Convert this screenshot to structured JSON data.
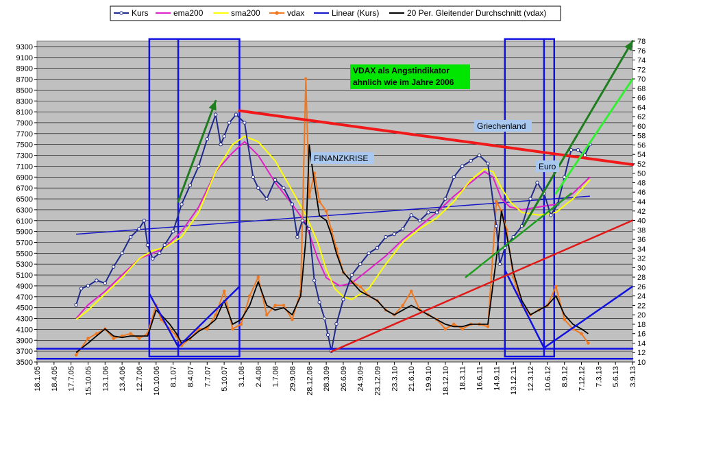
{
  "chart_data": {
    "type": "line",
    "title": "",
    "xlabel": "",
    "ylabel": "",
    "y_left_range": [
      3500,
      9400
    ],
    "y_right_range": [
      10,
      78
    ],
    "y_left_ticks": [
      3500,
      3700,
      3900,
      4100,
      4300,
      4500,
      4700,
      4900,
      5100,
      5300,
      5500,
      5700,
      5900,
      6100,
      6300,
      6500,
      6700,
      6900,
      7100,
      7300,
      7500,
      7700,
      7900,
      8100,
      8300,
      8500,
      8700,
      8900,
      9100,
      9300
    ],
    "y_right_ticks": [
      10,
      12,
      14,
      16,
      18,
      20,
      22,
      24,
      26,
      28,
      30,
      32,
      34,
      36,
      38,
      40,
      42,
      44,
      46,
      48,
      50,
      52,
      54,
      56,
      58,
      60,
      62,
      64,
      66,
      68,
      70,
      72,
      74,
      76,
      78
    ],
    "x_tick_labels": [
      "18.1.05",
      "18.4.05",
      "17.7.05",
      "15.10.05",
      "13.1.06",
      "13.4.06",
      "12.7.06",
      "10.10.06",
      "8.1.07",
      "8.4.07",
      "7.7.07",
      "5.10.07",
      "3.1.08",
      "2.4.08",
      "1.7.08",
      "29.9.08",
      "28.12.08",
      "28.3.09",
      "26.6.09",
      "24.9.09",
      "23.12.09",
      "23.3.10",
      "21.6.10",
      "19.9.10",
      "18.12.10",
      "18.3.11",
      "16.6.11",
      "14.9.11",
      "13.12.11",
      "12.3.12",
      "10.6.12",
      "8.9.12",
      "7.12.12",
      "7.3.13",
      "5.6.13",
      "3.9.13"
    ],
    "grid": true,
    "legend_position": "top",
    "series": [
      {
        "name": "Kurs",
        "color": "#1f2a8c",
        "axis": "left",
        "points": [
          [
            2.3,
            4550
          ],
          [
            2.6,
            4850
          ],
          [
            3.0,
            4900
          ],
          [
            3.5,
            5000
          ],
          [
            4.0,
            4950
          ],
          [
            4.5,
            5250
          ],
          [
            5.0,
            5500
          ],
          [
            5.5,
            5800
          ],
          [
            6.0,
            5950
          ],
          [
            6.3,
            6100
          ],
          [
            6.5,
            5650
          ],
          [
            6.8,
            5400
          ],
          [
            7.2,
            5500
          ],
          [
            7.5,
            5650
          ],
          [
            8.0,
            5900
          ],
          [
            8.5,
            6400
          ],
          [
            9.0,
            6750
          ],
          [
            9.5,
            7100
          ],
          [
            10.0,
            7600
          ],
          [
            10.5,
            8050
          ],
          [
            10.8,
            7500
          ],
          [
            11.0,
            7650
          ],
          [
            11.3,
            7900
          ],
          [
            11.7,
            8050
          ],
          [
            12.2,
            7900
          ],
          [
            12.7,
            6900
          ],
          [
            13.0,
            6700
          ],
          [
            13.5,
            6500
          ],
          [
            14.0,
            6850
          ],
          [
            14.5,
            6700
          ],
          [
            15.0,
            6400
          ],
          [
            15.3,
            5800
          ],
          [
            15.6,
            6100
          ],
          [
            16.0,
            5950
          ],
          [
            16.3,
            5000
          ],
          [
            16.6,
            4600
          ],
          [
            16.9,
            4300
          ],
          [
            17.1,
            4000
          ],
          [
            17.3,
            3700
          ],
          [
            17.6,
            4200
          ],
          [
            18.0,
            4650
          ],
          [
            18.5,
            5100
          ],
          [
            19.0,
            5300
          ],
          [
            19.5,
            5500
          ],
          [
            20.0,
            5600
          ],
          [
            20.5,
            5800
          ],
          [
            21.0,
            5850
          ],
          [
            21.5,
            5950
          ],
          [
            22.0,
            6200
          ],
          [
            22.5,
            6100
          ],
          [
            23.0,
            6250
          ],
          [
            23.5,
            6250
          ],
          [
            24.0,
            6500
          ],
          [
            24.5,
            6900
          ],
          [
            25.0,
            7100
          ],
          [
            25.5,
            7200
          ],
          [
            26.0,
            7300
          ],
          [
            26.5,
            7150
          ],
          [
            27.0,
            6000
          ],
          [
            27.2,
            5300
          ],
          [
            27.5,
            5600
          ],
          [
            28.0,
            5800
          ],
          [
            28.5,
            6000
          ],
          [
            29.0,
            6500
          ],
          [
            29.4,
            6800
          ],
          [
            29.8,
            6600
          ],
          [
            30.2,
            6200
          ],
          [
            30.6,
            6400
          ],
          [
            31.0,
            6900
          ],
          [
            31.4,
            7400
          ],
          [
            31.8,
            7400
          ],
          [
            32.2,
            7300
          ],
          [
            32.5,
            7500
          ]
        ]
      },
      {
        "name": "ema200",
        "color": "#e020c8",
        "axis": "left",
        "points": [
          [
            2.3,
            4300
          ],
          [
            3.0,
            4550
          ],
          [
            4.0,
            4800
          ],
          [
            5.0,
            5100
          ],
          [
            6.0,
            5400
          ],
          [
            6.8,
            5500
          ],
          [
            7.5,
            5600
          ],
          [
            8.5,
            5900
          ],
          [
            9.5,
            6350
          ],
          [
            10.5,
            7000
          ],
          [
            11.5,
            7350
          ],
          [
            12.2,
            7550
          ],
          [
            13.0,
            7300
          ],
          [
            14.0,
            6800
          ],
          [
            15.0,
            6400
          ],
          [
            15.8,
            6050
          ],
          [
            16.5,
            5400
          ],
          [
            17.0,
            5050
          ],
          [
            17.8,
            4900
          ],
          [
            18.5,
            4950
          ],
          [
            19.5,
            5200
          ],
          [
            20.5,
            5450
          ],
          [
            21.5,
            5750
          ],
          [
            22.5,
            6000
          ],
          [
            23.5,
            6250
          ],
          [
            24.5,
            6550
          ],
          [
            25.5,
            6800
          ],
          [
            26.3,
            7000
          ],
          [
            26.8,
            6900
          ],
          [
            27.3,
            6500
          ],
          [
            27.8,
            6350
          ],
          [
            28.5,
            6300
          ],
          [
            29.5,
            6350
          ],
          [
            30.5,
            6400
          ],
          [
            31.5,
            6600
          ],
          [
            32.5,
            6900
          ]
        ]
      },
      {
        "name": "sma200",
        "color": "#ffff00",
        "axis": "left",
        "points": [
          [
            2.3,
            4280
          ],
          [
            3.0,
            4450
          ],
          [
            4.0,
            4750
          ],
          [
            5.0,
            5050
          ],
          [
            6.0,
            5400
          ],
          [
            6.8,
            5550
          ],
          [
            7.5,
            5600
          ],
          [
            8.5,
            5800
          ],
          [
            9.5,
            6250
          ],
          [
            10.5,
            7000
          ],
          [
            11.5,
            7500
          ],
          [
            12.2,
            7650
          ],
          [
            13.0,
            7550
          ],
          [
            14.0,
            7200
          ],
          [
            15.0,
            6650
          ],
          [
            15.8,
            6200
          ],
          [
            16.5,
            5700
          ],
          [
            17.0,
            5200
          ],
          [
            17.5,
            4850
          ],
          [
            18.0,
            4700
          ],
          [
            18.5,
            4650
          ],
          [
            19.5,
            4850
          ],
          [
            20.5,
            5300
          ],
          [
            21.5,
            5700
          ],
          [
            22.5,
            5950
          ],
          [
            23.5,
            6150
          ],
          [
            24.5,
            6450
          ],
          [
            25.5,
            6850
          ],
          [
            26.3,
            7050
          ],
          [
            26.8,
            7000
          ],
          [
            27.3,
            6700
          ],
          [
            27.8,
            6450
          ],
          [
            28.5,
            6250
          ],
          [
            29.5,
            6200
          ],
          [
            30.5,
            6250
          ],
          [
            31.5,
            6500
          ],
          [
            32.5,
            6850
          ]
        ]
      },
      {
        "name": "vdax",
        "color": "#f07820",
        "axis": "right",
        "points": [
          [
            2.3,
            11.5
          ],
          [
            3.0,
            15
          ],
          [
            3.5,
            16
          ],
          [
            4.0,
            17
          ],
          [
            4.5,
            15
          ],
          [
            5.0,
            15.5
          ],
          [
            5.5,
            16
          ],
          [
            6.0,
            15
          ],
          [
            6.5,
            16
          ],
          [
            7.0,
            22
          ],
          [
            7.3,
            19
          ],
          [
            7.8,
            17
          ],
          [
            8.2,
            15.5
          ],
          [
            8.5,
            13.5
          ],
          [
            9.0,
            15
          ],
          [
            9.5,
            17
          ],
          [
            10.0,
            17
          ],
          [
            10.5,
            20
          ],
          [
            11.0,
            25
          ],
          [
            11.5,
            17
          ],
          [
            12.0,
            18
          ],
          [
            12.5,
            24
          ],
          [
            13.0,
            28
          ],
          [
            13.5,
            20
          ],
          [
            14.0,
            22
          ],
          [
            14.5,
            22
          ],
          [
            15.0,
            19
          ],
          [
            15.5,
            25
          ],
          [
            15.8,
            70
          ],
          [
            16.0,
            45
          ],
          [
            16.3,
            50
          ],
          [
            16.6,
            44
          ],
          [
            17.0,
            42
          ],
          [
            17.3,
            38
          ],
          [
            17.6,
            34
          ],
          [
            18.0,
            29
          ],
          [
            18.5,
            27
          ],
          [
            19.0,
            26
          ],
          [
            19.5,
            24
          ],
          [
            20.0,
            23
          ],
          [
            20.5,
            21
          ],
          [
            21.0,
            20
          ],
          [
            21.5,
            22
          ],
          [
            22.0,
            25
          ],
          [
            22.5,
            21
          ],
          [
            23.0,
            20
          ],
          [
            23.5,
            19
          ],
          [
            24.0,
            17
          ],
          [
            24.5,
            18
          ],
          [
            25.0,
            17
          ],
          [
            25.5,
            18
          ],
          [
            26.0,
            18
          ],
          [
            26.5,
            17.5
          ],
          [
            27.0,
            44
          ],
          [
            27.3,
            42
          ],
          [
            27.6,
            38
          ],
          [
            28.0,
            28
          ],
          [
            28.5,
            22
          ],
          [
            29.0,
            20
          ],
          [
            29.5,
            21
          ],
          [
            30.0,
            22
          ],
          [
            30.5,
            26
          ],
          [
            31.0,
            19
          ],
          [
            31.5,
            17
          ],
          [
            32.0,
            16
          ],
          [
            32.4,
            14
          ]
        ]
      },
      {
        "name": "Linear (Kurs)",
        "color": "#1414c8",
        "axis": "left",
        "points": [
          [
            2.3,
            5850
          ],
          [
            32.5,
            6550
          ]
        ]
      },
      {
        "name": "20 Per. Gleitender Durchschnitt (vdax)",
        "color": "#000000",
        "axis": "right",
        "points": [
          [
            2.3,
            12
          ],
          [
            3.0,
            14
          ],
          [
            3.5,
            15.5
          ],
          [
            4.0,
            17
          ],
          [
            4.5,
            15.5
          ],
          [
            5.0,
            15.2
          ],
          [
            5.5,
            15.5
          ],
          [
            6.0,
            15.5
          ],
          [
            6.5,
            15.5
          ],
          [
            7.0,
            21
          ],
          [
            7.3,
            20
          ],
          [
            7.8,
            18
          ],
          [
            8.2,
            16
          ],
          [
            8.5,
            14
          ],
          [
            9.0,
            15
          ],
          [
            9.5,
            16.5
          ],
          [
            10.0,
            17.5
          ],
          [
            10.5,
            19
          ],
          [
            11.0,
            23
          ],
          [
            11.5,
            18
          ],
          [
            12.0,
            19
          ],
          [
            12.5,
            22
          ],
          [
            13.0,
            27
          ],
          [
            13.5,
            22
          ],
          [
            14.0,
            21
          ],
          [
            14.5,
            21.5
          ],
          [
            15.0,
            20
          ],
          [
            15.5,
            24
          ],
          [
            15.8,
            36
          ],
          [
            16.0,
            56
          ],
          [
            16.3,
            48
          ],
          [
            16.6,
            41
          ],
          [
            17.0,
            40
          ],
          [
            17.3,
            37
          ],
          [
            17.6,
            33
          ],
          [
            18.0,
            29
          ],
          [
            18.5,
            27
          ],
          [
            19.0,
            25
          ],
          [
            19.5,
            24
          ],
          [
            20.0,
            23
          ],
          [
            20.5,
            21
          ],
          [
            21.0,
            20
          ],
          [
            21.5,
            21
          ],
          [
            22.0,
            22
          ],
          [
            22.5,
            21
          ],
          [
            23.0,
            20
          ],
          [
            23.5,
            19
          ],
          [
            24.0,
            18
          ],
          [
            24.5,
            17.5
          ],
          [
            25.0,
            17.5
          ],
          [
            25.5,
            18
          ],
          [
            26.0,
            18
          ],
          [
            26.5,
            18
          ],
          [
            27.0,
            32
          ],
          [
            27.3,
            42
          ],
          [
            27.6,
            37
          ],
          [
            28.0,
            29
          ],
          [
            28.5,
            23
          ],
          [
            29.0,
            20
          ],
          [
            29.5,
            21
          ],
          [
            30.0,
            22
          ],
          [
            30.5,
            24
          ],
          [
            31.0,
            20
          ],
          [
            31.5,
            18
          ],
          [
            32.0,
            17
          ],
          [
            32.4,
            16
          ]
        ]
      }
    ],
    "annotations": [
      {
        "id": "vdax-note",
        "text_line1": "VDAX als Angstindikator",
        "text_line2": "ahnlich wie im Jahre 2006"
      },
      {
        "id": "finanzkrise",
        "text": "FINANZKRISE"
      },
      {
        "id": "griechenland",
        "text": "Griechenland"
      },
      {
        "id": "euro",
        "text": "Euro"
      }
    ]
  }
}
